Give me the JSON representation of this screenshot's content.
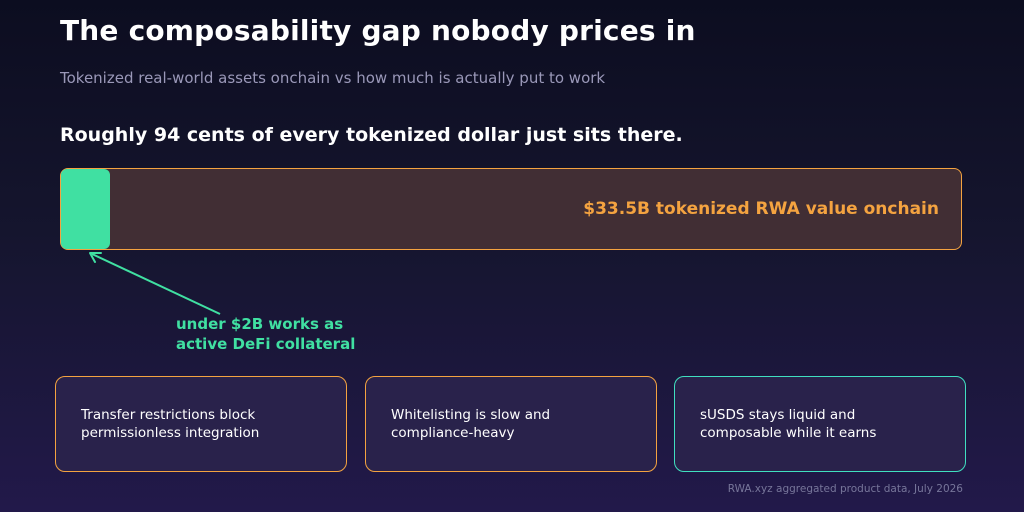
{
  "title": "The composability gap nobody prices in",
  "subtitle": "Tokenized real-world assets onchain vs how much is actually put to work",
  "headline": "Roughly 94 cents of every tokenized dollar just sits there.",
  "chart_data": {
    "type": "bar",
    "orientation": "horizontal",
    "unit": "USD billions",
    "total_value": 33.5,
    "active_value": 2,
    "total_label": "$33.5B tokenized RWA value onchain",
    "active_label_lines": [
      "under $2B works as",
      "active DeFi collateral"
    ],
    "annotation_arrow": "points from callout to active segment"
  },
  "cards": [
    {
      "lines": [
        "Transfer restrictions block",
        "permissionless integration"
      ],
      "accent": "#f4a340"
    },
    {
      "lines": [
        "Whitelisting is slow and",
        "compliance-heavy"
      ],
      "accent": "#f4a340"
    },
    {
      "lines": [
        "sUSDS stays liquid and",
        "composable while it earns"
      ],
      "accent": "#40e0c0"
    }
  ],
  "source": "RWA.xyz aggregated product data, July 2026",
  "colors": {
    "background_top": "#0c0d20",
    "background_bottom": "#22194a",
    "orange_accent": "#f4a340",
    "green_accent": "#40e0a2",
    "track_fill": "#412e34",
    "card_fill": "#29224b"
  }
}
